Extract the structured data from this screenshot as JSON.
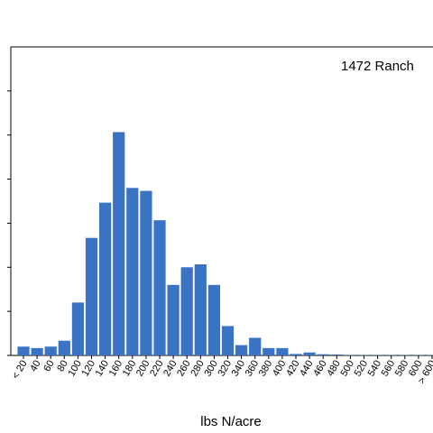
{
  "chart_data": {
    "type": "bar",
    "annotation": "1472 Ranch",
    "xlabel": "lbs N/acre",
    "ylabel": "",
    "ylim": [
      0,
      105
    ],
    "grid": false,
    "colors": {
      "bar": "#3a72c4",
      "axis": "#000000"
    },
    "categories": [
      "< 20",
      "40",
      "60",
      "80",
      "100",
      "120",
      "140",
      "160",
      "180",
      "200",
      "220",
      "240",
      "260",
      "280",
      "300",
      "320",
      "340",
      "360",
      "380",
      "400",
      "420",
      "440",
      "460",
      "480",
      "500",
      "520",
      "540",
      "560",
      "580",
      "600",
      "> 600"
    ],
    "values": [
      3,
      2.5,
      3,
      5,
      18,
      40,
      52,
      76,
      57,
      56,
      46,
      24,
      30,
      31,
      24,
      10,
      3.5,
      6,
      2.5,
      2.5,
      0.5,
      1,
      0.4,
      0.3,
      0.1,
      0.1,
      0.1,
      0.1,
      0.1,
      0.1,
      0.1
    ]
  }
}
